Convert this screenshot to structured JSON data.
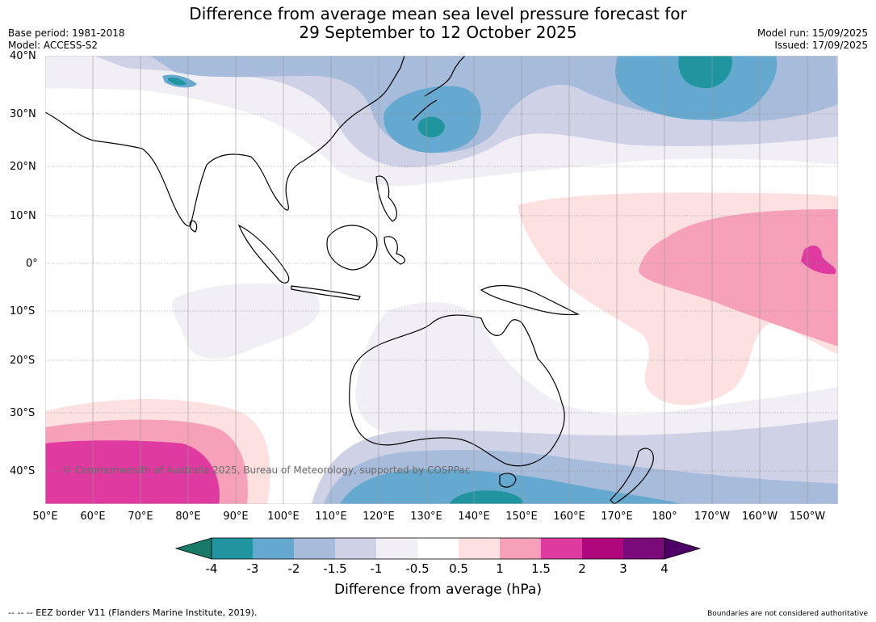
{
  "header": {
    "title_line1": "Difference from average mean sea level pressure forecast for",
    "title_line2": "29 September to 12 October 2025",
    "base_period": "Base period: 1981-2018",
    "model": "Model: ACCESS-S2",
    "model_run": "Model run: 15/09/2025",
    "issued": "Issued: 17/09/2025"
  },
  "map": {
    "lat_labels": [
      "40°N",
      "30°N",
      "20°N",
      "10°N",
      "0°",
      "10°S",
      "20°S",
      "30°S",
      "40°S"
    ],
    "lon_labels": [
      "50°E",
      "60°E",
      "70°E",
      "80°E",
      "90°E",
      "100°E",
      "110°E",
      "120°E",
      "130°E",
      "140°E",
      "150°E",
      "160°E",
      "170°E",
      "180°",
      "170°W",
      "160°W",
      "150°W"
    ],
    "credit": "© Commonwealth of Australia 2025, Bureau of Meteorology, supported by COSPPac"
  },
  "colorbar": {
    "labels": [
      "-4",
      "-3",
      "-2",
      "-1.5",
      "-1",
      "-0.5",
      "0.5",
      "1",
      "1.5",
      "2",
      "3",
      "4"
    ],
    "colors": [
      "#1a7a6a",
      "#2095a0",
      "#66a9d0",
      "#a7bbdb",
      "#cfd1e6",
      "#f2eef6",
      "#ffffff",
      "#fde0e0",
      "#f7a0ba",
      "#de3aa0",
      "#b0087c",
      "#7a0a7a",
      "#4f0066"
    ],
    "title": "Difference from average (hPa)"
  },
  "footer": {
    "left": "--  --  -- EEZ border V11 (Flanders Marine Institute, 2019).",
    "right": "Boundaries are not considered authoritative"
  }
}
